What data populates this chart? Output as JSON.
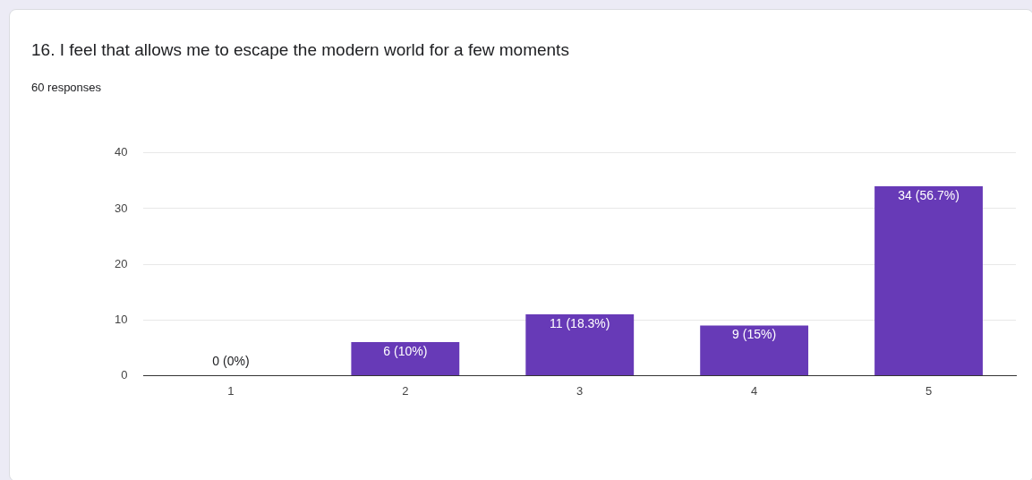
{
  "chart_data": {
    "type": "bar",
    "title": "16. I feel that allows me to escape the modern world for a few moments",
    "subtitle": "60 responses",
    "categories": [
      "1",
      "2",
      "3",
      "4",
      "5"
    ],
    "values": [
      0,
      6,
      11,
      9,
      34
    ],
    "value_labels": [
      "0 (0%)",
      "6 (10%)",
      "11 (18.3%)",
      "9 (15%)",
      "34 (56.7%)"
    ],
    "color": "#673ab7",
    "ylim": [
      0,
      40
    ],
    "yticks": [
      0,
      10,
      20,
      30,
      40
    ],
    "grid": "y",
    "legend": false
  }
}
